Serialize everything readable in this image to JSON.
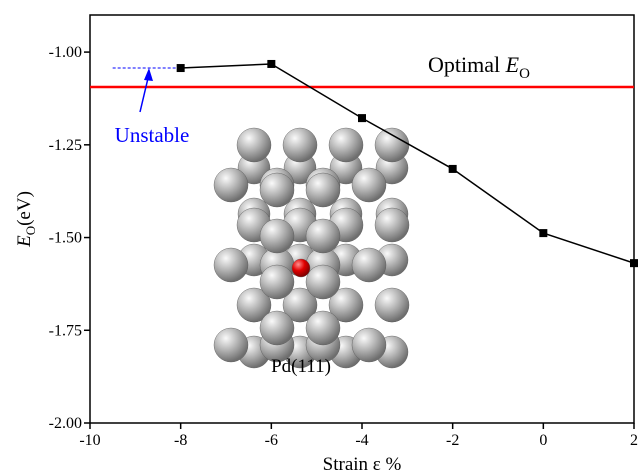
{
  "chart_data": {
    "type": "line",
    "x": [
      -8,
      -6,
      -4,
      -2,
      0,
      2
    ],
    "series": [
      {
        "name": "Pd(111)",
        "color": "#000000",
        "values": [
          -1.043,
          -1.032,
          -1.178,
          -1.315,
          -1.488,
          -1.569
        ]
      }
    ],
    "xlim": [
      -10,
      2
    ],
    "ylim": [
      -2.0,
      -0.9
    ],
    "xticks": [
      -10,
      -8,
      -6,
      -4,
      -2,
      0,
      2
    ],
    "yticks": [
      {
        "value": -2.0,
        "label": "-2.00"
      },
      {
        "value": -1.75,
        "label": "-1.75"
      },
      {
        "value": -1.5,
        "label": "-1.50"
      },
      {
        "value": -1.25,
        "label": "-1.25"
      },
      {
        "value": -1.0,
        "label": "-1.00"
      }
    ],
    "xlabel": "Strain ε %",
    "ylabel": {
      "symbol": "E",
      "subscript": "O",
      "unit": "(eV)"
    },
    "optimal": {
      "value": -1.094,
      "color": "#ff0000",
      "text": "Optimal ",
      "symbol": "E",
      "subscript": "O"
    },
    "unstable": {
      "x": [
        -9.5,
        -8
      ],
      "value": -1.043,
      "color": "#0000ff",
      "text": "Unstable"
    },
    "inset_label": "Pd(111)"
  }
}
